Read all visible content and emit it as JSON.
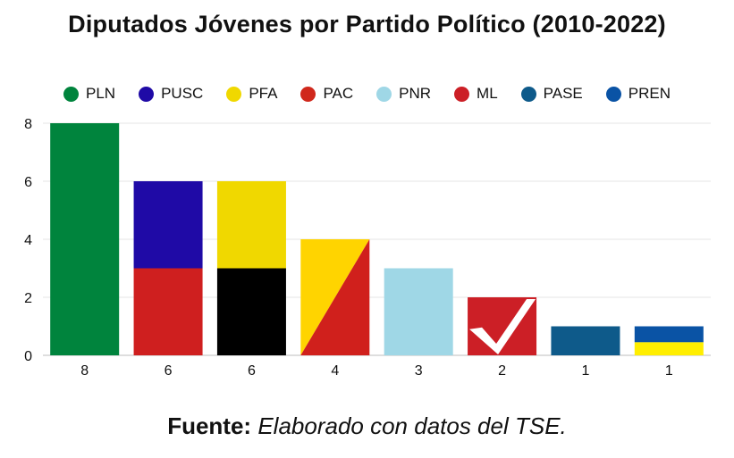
{
  "chart_data": {
    "type": "bar",
    "title": "Diputados Jóvenes por Partido Político (2010-2022)",
    "xlabel": "",
    "ylabel": "",
    "ylim": [
      0,
      8
    ],
    "yticks": [
      "0",
      "2",
      "4",
      "6",
      "8"
    ],
    "grid": true,
    "legend_position": "top",
    "legend": [
      {
        "name": "PLN",
        "color": "#00843d"
      },
      {
        "name": "PUSC",
        "color": "#1f0aa6"
      },
      {
        "name": "PFA",
        "color": "#f0d800"
      },
      {
        "name": "PAC",
        "color": "#d0281c"
      },
      {
        "name": "PNR",
        "color": "#9fd7e6"
      },
      {
        "name": "ML",
        "color": "#cc1f26"
      },
      {
        "name": "PASE",
        "color": "#0e5a8a"
      },
      {
        "name": "PREN",
        "color": "#0a53a5"
      }
    ],
    "categories": [
      "8",
      "6",
      "6",
      "4",
      "3",
      "2",
      "1",
      "1"
    ],
    "values": [
      8,
      6,
      6,
      4,
      3,
      2,
      1,
      1
    ],
    "bar_styles": [
      {
        "style": "solid",
        "colors": [
          "#00843d"
        ]
      },
      {
        "style": "split-h",
        "colors": [
          "#cf1f1f",
          "#1f0aa6"
        ]
      },
      {
        "style": "split-h",
        "colors": [
          "#000000",
          "#f0d800"
        ]
      },
      {
        "style": "diagonal",
        "colors": [
          "#ffd400",
          "#d0201c"
        ]
      },
      {
        "style": "solid",
        "colors": [
          "#9fd7e6"
        ]
      },
      {
        "style": "check",
        "colors": [
          "#cc1f26",
          "#ffffff"
        ]
      },
      {
        "style": "solid",
        "colors": [
          "#0e5a8a"
        ]
      },
      {
        "style": "split-h",
        "colors": [
          "#ffee00",
          "#0a53a5"
        ]
      }
    ]
  },
  "source": {
    "label": "Fuente:",
    "text": "Elaborado con datos del TSE."
  }
}
